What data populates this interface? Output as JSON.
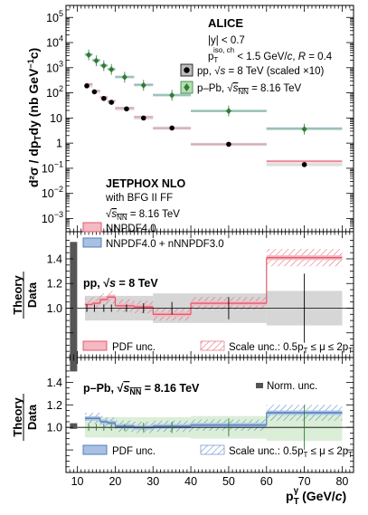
{
  "chart_data": [
    {
      "type": "scatter",
      "panel": "cross-section",
      "ylabel": "d²σ/dp_T dy (nb GeV⁻¹c)",
      "yscale": "log",
      "ylim": [
        0.0003,
        300000
      ],
      "xlim": [
        7,
        83
      ],
      "yticks": [
        {
          "v": 100000,
          "label": "10",
          "exp": "5"
        },
        {
          "v": 10000,
          "label": "10",
          "exp": "4"
        },
        {
          "v": 1000,
          "label": "10",
          "exp": "3"
        },
        {
          "v": 100,
          "label": "10",
          "exp": "2"
        },
        {
          "v": 10,
          "label": "10",
          "exp": ""
        },
        {
          "v": 1,
          "label": "1",
          "exp": ""
        },
        {
          "v": 0.1,
          "label": "10",
          "exp": "−1"
        },
        {
          "v": 0.01,
          "label": "10",
          "exp": "−2"
        },
        {
          "v": 0.001,
          "label": "10",
          "exp": "−3"
        }
      ],
      "legend_header": {
        "experiment": "ALICE",
        "line1": "|y| < 0.7",
        "line2": "p_T^{iso, ch} < 1.5 GeV/c, R = 0.4",
        "pp_label": "pp, √s = 8 TeV (scaled ×10)",
        "ppb_label": "p–Pb, √s_NN = 8.16 TeV"
      },
      "theory_text": {
        "title": "JETPHOX NLO",
        "line1": "with BFG II FF",
        "line2": "√s_NN = 8.16 TeV",
        "pdf1": "NNPDF4.0",
        "pdf2": "NNPDF4.0 + nNNPDF3.0"
      },
      "series": [
        {
          "name": "pp, √s = 8 TeV (scaled ×10)",
          "color": "#000000",
          "points": [
            {
              "x": 12.5,
              "y": 190
            },
            {
              "x": 14.5,
              "y": 110
            },
            {
              "x": 17,
              "y": 60
            },
            {
              "x": 19,
              "y": 42
            },
            {
              "x": 23,
              "y": 23
            },
            {
              "x": 27.5,
              "y": 10
            },
            {
              "x": 35,
              "y": 4
            },
            {
              "x": 50,
              "y": 0.9
            },
            {
              "x": 70,
              "y": 0.14
            }
          ]
        },
        {
          "name": "p–Pb, √s_NN = 8.16 TeV",
          "color": "#2e7d32",
          "points": [
            {
              "x": 13,
              "y": 3200
            },
            {
              "x": 15,
              "y": 1900
            },
            {
              "x": 17,
              "y": 1200
            },
            {
              "x": 19,
              "y": 850
            },
            {
              "x": 22.5,
              "y": 420
            },
            {
              "x": 27.5,
              "y": 200
            },
            {
              "x": 35,
              "y": 80
            },
            {
              "x": 50,
              "y": 19
            },
            {
              "x": 70,
              "y": 3.6
            }
          ]
        }
      ],
      "theory_bands": [
        {
          "name": "NNPDF4.0",
          "color": "#e8808f",
          "bins": [
            [
              12,
              14,
              220
            ],
            [
              14,
              16,
              120
            ],
            [
              16,
              18,
              67
            ],
            [
              18,
              20,
              47
            ],
            [
              20,
              25,
              25
            ],
            [
              25,
              30,
              11
            ],
            [
              30,
              40,
              3.9
            ],
            [
              40,
              60,
              0.9
            ],
            [
              60,
              80,
              0.19
            ]
          ]
        },
        {
          "name": "NNPDF4.0 + nNNPDF3.0",
          "color": "#4f7fbf",
          "bins": [
            [
              12,
              14,
              3400
            ],
            [
              14,
              16,
              2000
            ],
            [
              16,
              18,
              1250
            ],
            [
              18,
              20,
              880
            ],
            [
              20,
              25,
              430
            ],
            [
              25,
              30,
              210
            ],
            [
              30,
              40,
              82
            ],
            [
              40,
              60,
              19
            ],
            [
              60,
              80,
              3.8
            ]
          ]
        }
      ]
    },
    {
      "type": "line",
      "panel": "ratio-pp",
      "ylabel": "Theory / Data",
      "ylim": [
        0.6,
        1.62
      ],
      "yticks": [
        1.0,
        1.2,
        1.4
      ],
      "label": "pp, √s = 8 TeV",
      "legend_pdf": "PDF unc.",
      "legend_scale": "Scale unc.: 0.5p_T ≤ μ ≤ 2p_T",
      "norm_unc": 1.05,
      "ratio": [
        [
          12,
          14,
          1.03
        ],
        [
          14,
          16,
          1.04
        ],
        [
          16,
          18,
          1.07
        ],
        [
          18,
          20,
          1.09
        ],
        [
          20,
          25,
          1.02
        ],
        [
          25,
          30,
          1.01
        ],
        [
          30,
          40,
          0.95
        ],
        [
          40,
          60,
          1.04
        ],
        [
          60,
          80,
          1.41
        ]
      ],
      "data_err": [
        [
          12,
          14,
          0.1
        ],
        [
          14,
          16,
          0.1
        ],
        [
          16,
          18,
          0.1
        ],
        [
          18,
          20,
          0.1
        ],
        [
          20,
          25,
          0.1
        ],
        [
          25,
          30,
          0.1
        ],
        [
          30,
          40,
          0.12
        ],
        [
          40,
          60,
          0.12
        ],
        [
          60,
          80,
          0.14
        ]
      ],
      "stat_err": [
        [
          12.5,
          0.03
        ],
        [
          14.5,
          0.03
        ],
        [
          17,
          0.03
        ],
        [
          19,
          0.03
        ],
        [
          23,
          0.03
        ],
        [
          27.5,
          0.04
        ],
        [
          35,
          0.05
        ],
        [
          50,
          0.09
        ],
        [
          70,
          0.28
        ]
      ]
    },
    {
      "type": "line",
      "panel": "ratio-ppb",
      "ylabel": "Theory / Data",
      "ylim": [
        0.6,
        1.62
      ],
      "yticks": [
        1.0,
        1.2,
        1.4
      ],
      "label": "p–Pb, √s_NN = 8.16 TeV",
      "norm_label": "Norm. unc.",
      "legend_pdf": "PDF unc.",
      "legend_scale": "Scale unc.: 0.5p_T ≤ μ ≤ 2p_T",
      "norm_unc": 0.05,
      "ratio": [
        [
          12,
          14,
          1.08
        ],
        [
          14,
          16,
          1.08
        ],
        [
          16,
          18,
          1.05
        ],
        [
          18,
          20,
          1.04
        ],
        [
          20,
          25,
          1.01
        ],
        [
          25,
          30,
          1.0
        ],
        [
          30,
          40,
          1.01
        ],
        [
          40,
          60,
          1.02
        ],
        [
          60,
          80,
          1.13
        ]
      ],
      "data_err": [
        [
          12,
          14,
          0.09
        ],
        [
          14,
          16,
          0.09
        ],
        [
          16,
          18,
          0.09
        ],
        [
          18,
          20,
          0.09
        ],
        [
          20,
          25,
          0.09
        ],
        [
          25,
          30,
          0.09
        ],
        [
          30,
          40,
          0.09
        ],
        [
          40,
          60,
          0.1
        ],
        [
          60,
          80,
          0.12
        ]
      ],
      "stat_err": [
        [
          13,
          0.03
        ],
        [
          15,
          0.03
        ],
        [
          17,
          0.03
        ],
        [
          19,
          0.03
        ],
        [
          22.5,
          0.03
        ],
        [
          27.5,
          0.04
        ],
        [
          35,
          0.05
        ],
        [
          50,
          0.08
        ],
        [
          70,
          0.2
        ]
      ]
    },
    {
      "type": "axis",
      "panel": "x-axis",
      "xlabel": "p_T^γ (GeV/c)",
      "xticks": [
        10,
        20,
        30,
        40,
        50,
        60,
        70,
        80
      ]
    }
  ]
}
